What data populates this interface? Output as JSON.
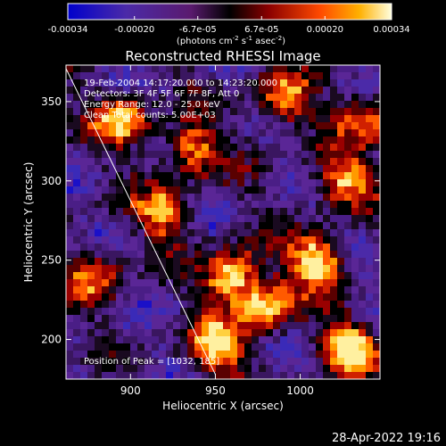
{
  "chart_data": {
    "type": "heatmap",
    "title": "Reconstructed RHESSI Image",
    "xlabel": "Heliocentric X (arcsec)",
    "ylabel": "Heliocentric Y (arcsec)",
    "xlim": [
      862,
      1047
    ],
    "ylim": [
      175,
      373
    ],
    "x_ticks": [
      900,
      950,
      1000
    ],
    "y_ticks": [
      200,
      250,
      300,
      350
    ],
    "colorbar": {
      "range": [
        -0.00034,
        0.00034
      ],
      "ticks": [
        -0.00034,
        -0.0002,
        -6.7e-05,
        6.7e-05,
        0.0002,
        0.00034
      ],
      "tick_labels": [
        "-0.00034",
        "-0.00020",
        "-6.7e-05",
        "6.7e-05",
        "0.00020",
        "0.00034"
      ],
      "unit_label": "(photons cm",
      "unit_exp1": "-2",
      "unit_mid": " s",
      "unit_exp2": "-1",
      "unit_mid2": " asec",
      "unit_exp3": "-2",
      "unit_end": ")"
    },
    "annotations": [
      "19-Feb-2004 14:17:20.000 to 14:23:20.000",
      "Detectors: 3F 4F 5F 6F 7F 8F, Att 0",
      "Energy Range: 12.0 - 25.0 keV",
      "Clean     Total counts: 5.00E+03"
    ],
    "peak_label": "Position of Peak = [1032, 185]",
    "limb_line": {
      "x": [
        861,
        950
      ],
      "y": [
        373,
        178
      ]
    },
    "hot_spots": [
      {
        "x": 960,
        "y": 240,
        "intensity": 1.0
      },
      {
        "x": 1010,
        "y": 250,
        "intensity": 0.95
      },
      {
        "x": 1030,
        "y": 195,
        "intensity": 0.9
      },
      {
        "x": 935,
        "y": 320,
        "intensity": 0.7
      },
      {
        "x": 895,
        "y": 340,
        "intensity": 0.75
      },
      {
        "x": 1025,
        "y": 300,
        "intensity": 0.75
      },
      {
        "x": 980,
        "y": 220,
        "intensity": 0.8
      },
      {
        "x": 920,
        "y": 280,
        "intensity": 0.65
      },
      {
        "x": 990,
        "y": 350,
        "intensity": 0.7
      },
      {
        "x": 880,
        "y": 240,
        "intensity": 0.55
      },
      {
        "x": 950,
        "y": 195,
        "intensity": 0.85
      },
      {
        "x": 1040,
        "y": 340,
        "intensity": 0.6
      }
    ]
  },
  "footer": {
    "timestamp": "28-Apr-2022 19:16"
  }
}
